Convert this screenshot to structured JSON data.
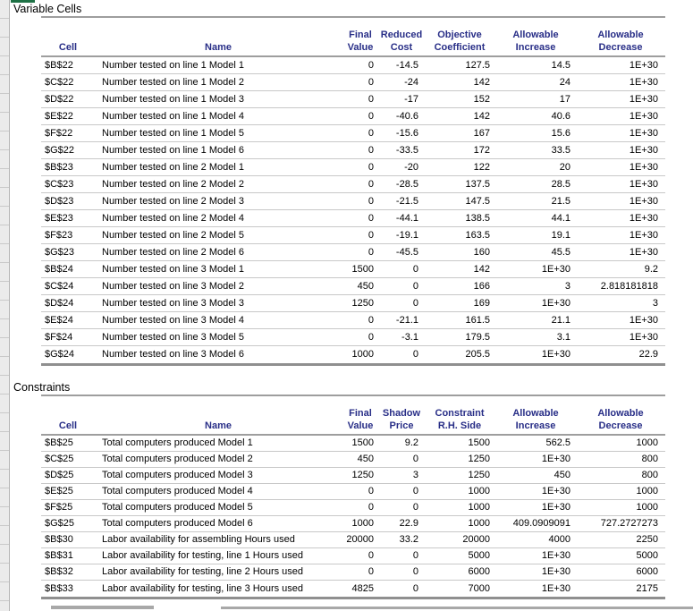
{
  "colors": {
    "header_text": "#282e87",
    "rule_gray": "#9e9e9e",
    "accent_green": "#1e7145"
  },
  "variable_cells": {
    "section_title": "Variable Cells",
    "headers": {
      "cell": "Cell",
      "name": "Name",
      "final_value": "Final\nValue",
      "reduced_cost": "Reduced\nCost",
      "objective_coefficient": "Objective\nCoefficient",
      "allowable_increase": "Allowable\nIncrease",
      "allowable_decrease": "Allowable\nDecrease"
    },
    "rows": [
      {
        "cell": "$B$22",
        "name": "Number tested on line 1 Model 1",
        "final_value": "0",
        "reduced_cost": "-14.5",
        "objective_coefficient": "127.5",
        "allowable_increase": "14.5",
        "allowable_decrease": "1E+30"
      },
      {
        "cell": "$C$22",
        "name": "Number tested on line 1 Model 2",
        "final_value": "0",
        "reduced_cost": "-24",
        "objective_coefficient": "142",
        "allowable_increase": "24",
        "allowable_decrease": "1E+30"
      },
      {
        "cell": "$D$22",
        "name": "Number tested on line 1 Model 3",
        "final_value": "0",
        "reduced_cost": "-17",
        "objective_coefficient": "152",
        "allowable_increase": "17",
        "allowable_decrease": "1E+30"
      },
      {
        "cell": "$E$22",
        "name": "Number tested on line 1 Model 4",
        "final_value": "0",
        "reduced_cost": "-40.6",
        "objective_coefficient": "142",
        "allowable_increase": "40.6",
        "allowable_decrease": "1E+30"
      },
      {
        "cell": "$F$22",
        "name": "Number tested on line 1 Model 5",
        "final_value": "0",
        "reduced_cost": "-15.6",
        "objective_coefficient": "167",
        "allowable_increase": "15.6",
        "allowable_decrease": "1E+30"
      },
      {
        "cell": "$G$22",
        "name": "Number tested on line 1 Model 6",
        "final_value": "0",
        "reduced_cost": "-33.5",
        "objective_coefficient": "172",
        "allowable_increase": "33.5",
        "allowable_decrease": "1E+30"
      },
      {
        "cell": "$B$23",
        "name": "Number tested on line 2 Model 1",
        "final_value": "0",
        "reduced_cost": "-20",
        "objective_coefficient": "122",
        "allowable_increase": "20",
        "allowable_decrease": "1E+30"
      },
      {
        "cell": "$C$23",
        "name": "Number tested on line 2 Model 2",
        "final_value": "0",
        "reduced_cost": "-28.5",
        "objective_coefficient": "137.5",
        "allowable_increase": "28.5",
        "allowable_decrease": "1E+30"
      },
      {
        "cell": "$D$23",
        "name": "Number tested on line 2 Model 3",
        "final_value": "0",
        "reduced_cost": "-21.5",
        "objective_coefficient": "147.5",
        "allowable_increase": "21.5",
        "allowable_decrease": "1E+30"
      },
      {
        "cell": "$E$23",
        "name": "Number tested on line 2 Model 4",
        "final_value": "0",
        "reduced_cost": "-44.1",
        "objective_coefficient": "138.5",
        "allowable_increase": "44.1",
        "allowable_decrease": "1E+30"
      },
      {
        "cell": "$F$23",
        "name": "Number tested on line 2 Model 5",
        "final_value": "0",
        "reduced_cost": "-19.1",
        "objective_coefficient": "163.5",
        "allowable_increase": "19.1",
        "allowable_decrease": "1E+30"
      },
      {
        "cell": "$G$23",
        "name": "Number tested on line 2 Model 6",
        "final_value": "0",
        "reduced_cost": "-45.5",
        "objective_coefficient": "160",
        "allowable_increase": "45.5",
        "allowable_decrease": "1E+30"
      },
      {
        "cell": "$B$24",
        "name": "Number tested on line 3 Model 1",
        "final_value": "1500",
        "reduced_cost": "0",
        "objective_coefficient": "142",
        "allowable_increase": "1E+30",
        "allowable_decrease": "9.2"
      },
      {
        "cell": "$C$24",
        "name": "Number tested on line 3 Model 2",
        "final_value": "450",
        "reduced_cost": "0",
        "objective_coefficient": "166",
        "allowable_increase": "3",
        "allowable_decrease": "2.818181818"
      },
      {
        "cell": "$D$24",
        "name": "Number tested on line 3 Model 3",
        "final_value": "1250",
        "reduced_cost": "0",
        "objective_coefficient": "169",
        "allowable_increase": "1E+30",
        "allowable_decrease": "3"
      },
      {
        "cell": "$E$24",
        "name": "Number tested on line 3 Model 4",
        "final_value": "0",
        "reduced_cost": "-21.1",
        "objective_coefficient": "161.5",
        "allowable_increase": "21.1",
        "allowable_decrease": "1E+30"
      },
      {
        "cell": "$F$24",
        "name": "Number tested on line 3 Model 5",
        "final_value": "0",
        "reduced_cost": "-3.1",
        "objective_coefficient": "179.5",
        "allowable_increase": "3.1",
        "allowable_decrease": "1E+30"
      },
      {
        "cell": "$G$24",
        "name": "Number tested on line 3 Model 6",
        "final_value": "1000",
        "reduced_cost": "0",
        "objective_coefficient": "205.5",
        "allowable_increase": "1E+30",
        "allowable_decrease": "22.9"
      }
    ]
  },
  "constraints": {
    "section_title": "Constraints",
    "headers": {
      "cell": "Cell",
      "name": "Name",
      "final_value": "Final\nValue",
      "shadow_price": "Shadow\nPrice",
      "constraint_rhs": "Constraint\nR.H. Side",
      "allowable_increase": "Allowable\nIncrease",
      "allowable_decrease": "Allowable\nDecrease"
    },
    "rows": [
      {
        "cell": "$B$25",
        "name": "Total computers produced Model 1",
        "final_value": "1500",
        "shadow_price": "9.2",
        "constraint_rhs": "1500",
        "allowable_increase": "562.5",
        "allowable_decrease": "1000"
      },
      {
        "cell": "$C$25",
        "name": "Total computers produced Model 2",
        "final_value": "450",
        "shadow_price": "0",
        "constraint_rhs": "1250",
        "allowable_increase": "1E+30",
        "allowable_decrease": "800"
      },
      {
        "cell": "$D$25",
        "name": "Total computers produced Model 3",
        "final_value": "1250",
        "shadow_price": "3",
        "constraint_rhs": "1250",
        "allowable_increase": "450",
        "allowable_decrease": "800"
      },
      {
        "cell": "$E$25",
        "name": "Total computers produced Model 4",
        "final_value": "0",
        "shadow_price": "0",
        "constraint_rhs": "1000",
        "allowable_increase": "1E+30",
        "allowable_decrease": "1000"
      },
      {
        "cell": "$F$25",
        "name": "Total computers produced Model 5",
        "final_value": "0",
        "shadow_price": "0",
        "constraint_rhs": "1000",
        "allowable_increase": "1E+30",
        "allowable_decrease": "1000"
      },
      {
        "cell": "$G$25",
        "name": "Total computers produced Model 6",
        "final_value": "1000",
        "shadow_price": "22.9",
        "constraint_rhs": "1000",
        "allowable_increase": "409.0909091",
        "allowable_decrease": "727.2727273"
      },
      {
        "cell": "$B$30",
        "name": "Labor availability for assembling Hours used",
        "final_value": "20000",
        "shadow_price": "33.2",
        "constraint_rhs": "20000",
        "allowable_increase": "4000",
        "allowable_decrease": "2250"
      },
      {
        "cell": "$B$31",
        "name": "Labor availability for testing, line 1 Hours used",
        "final_value": "0",
        "shadow_price": "0",
        "constraint_rhs": "5000",
        "allowable_increase": "1E+30",
        "allowable_decrease": "5000"
      },
      {
        "cell": "$B$32",
        "name": "Labor availability for testing, line 2 Hours used",
        "final_value": "0",
        "shadow_price": "0",
        "constraint_rhs": "6000",
        "allowable_increase": "1E+30",
        "allowable_decrease": "6000"
      },
      {
        "cell": "$B$33",
        "name": "Labor availability for testing, line 3 Hours used",
        "final_value": "4825",
        "shadow_price": "0",
        "constraint_rhs": "7000",
        "allowable_increase": "1E+30",
        "allowable_decrease": "2175"
      }
    ]
  }
}
